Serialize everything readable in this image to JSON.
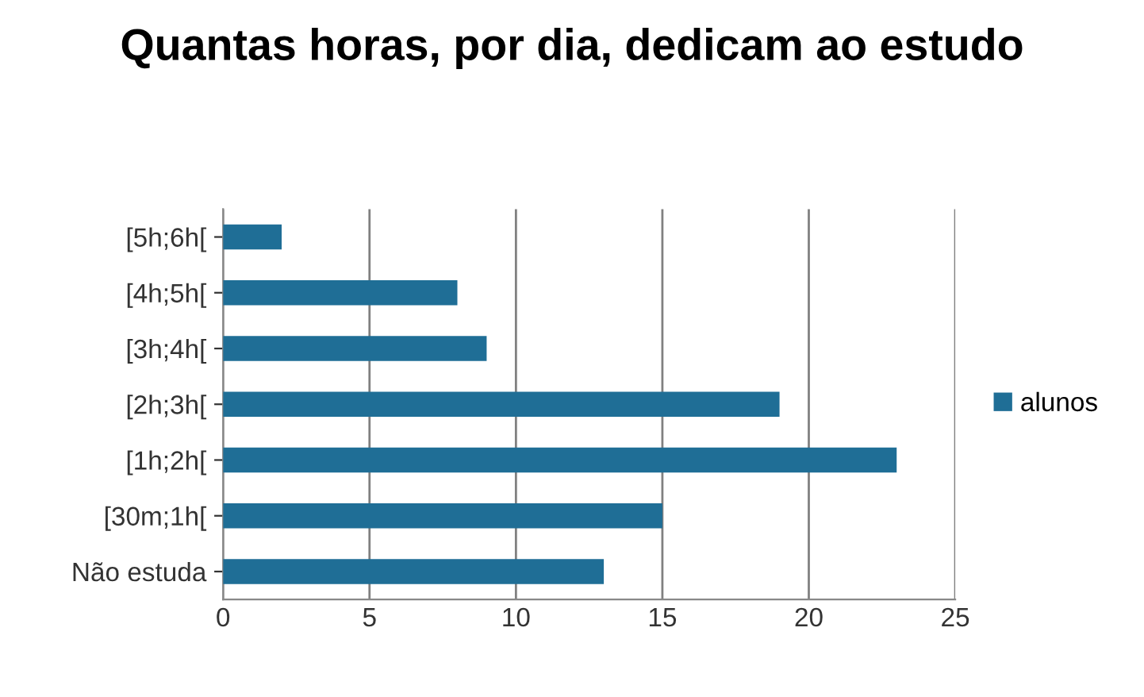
{
  "chart_data": {
    "type": "bar",
    "orientation": "horizontal",
    "title": "Quantas horas, por dia, dedicam ao estudo",
    "categories": [
      "[5h;6h[",
      "[4h;5h[",
      "[3h;4h[",
      "[2h;3h[",
      "[1h;2h[",
      "[30m;1h[",
      "Não estuda"
    ],
    "series": [
      {
        "name": "alunos",
        "color": "#1f6e96",
        "values": [
          2,
          8,
          9,
          19,
          23,
          15,
          13
        ]
      }
    ],
    "xlim": [
      0,
      25
    ],
    "xticks": [
      0,
      5,
      10,
      15,
      20,
      25
    ],
    "grid": "x",
    "legend": "right"
  }
}
